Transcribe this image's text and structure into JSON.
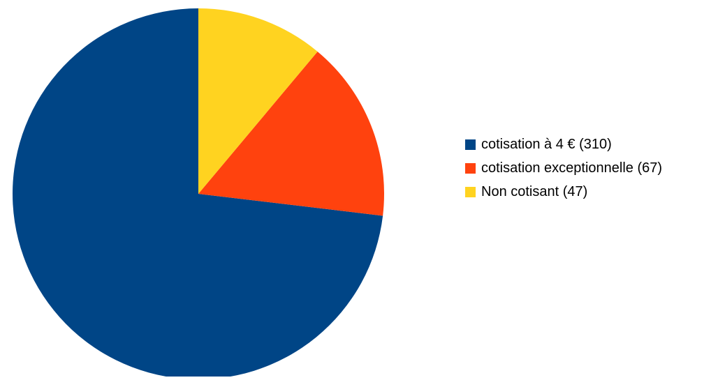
{
  "chart_data": {
    "type": "pie",
    "start": "top",
    "direction": "counterclockwise",
    "slices": [
      {
        "label": "cotisation à 4 € (310)",
        "value": 310,
        "color": "#004586"
      },
      {
        "label": "cotisation exceptionnelle (67)",
        "value": 67,
        "color": "#ff420e"
      },
      {
        "label": "Non cotisant (47)",
        "value": 47,
        "color": "#ffd320"
      }
    ],
    "legend_position": "right"
  }
}
